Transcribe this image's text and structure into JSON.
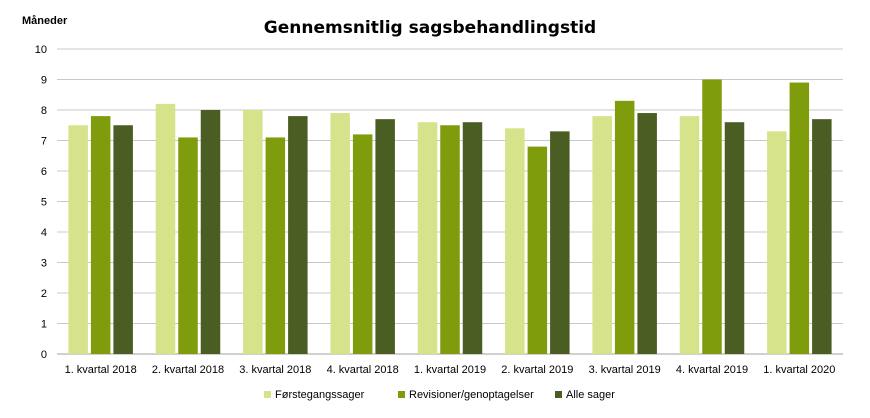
{
  "chart_data": {
    "type": "bar",
    "title": "Gennemsnitlig sagsbehandlingstid",
    "ylabel": "Måneder",
    "xlabel": "",
    "ylim": [
      0,
      10
    ],
    "yticks": [
      0,
      1,
      2,
      3,
      4,
      5,
      6,
      7,
      8,
      9,
      10
    ],
    "grid": true,
    "legend_position": "bottom",
    "categories": [
      "1. kvartal 2018",
      "2. kvartal 2018",
      "3. kvartal 2018",
      "4. kvartal 2018",
      "1. kvartal 2019",
      "2. kvartal 2019",
      "3. kvartal 2019",
      "4. kvartal 2019",
      "1. kvartal 2020"
    ],
    "series": [
      {
        "name": "Førstegangssager",
        "color": "#d6e38a",
        "values": [
          7.5,
          8.2,
          8.0,
          7.9,
          7.6,
          7.4,
          7.8,
          7.8,
          7.3
        ]
      },
      {
        "name": "Revisioner/genoptagelser",
        "color": "#7f9c0d",
        "values": [
          7.8,
          7.1,
          7.1,
          7.2,
          7.5,
          6.8,
          8.3,
          9.0,
          8.9
        ]
      },
      {
        "name": "Alle sager",
        "color": "#4a5e23",
        "values": [
          7.5,
          8.0,
          7.8,
          7.7,
          7.6,
          7.3,
          7.9,
          7.6,
          7.7
        ]
      }
    ]
  }
}
